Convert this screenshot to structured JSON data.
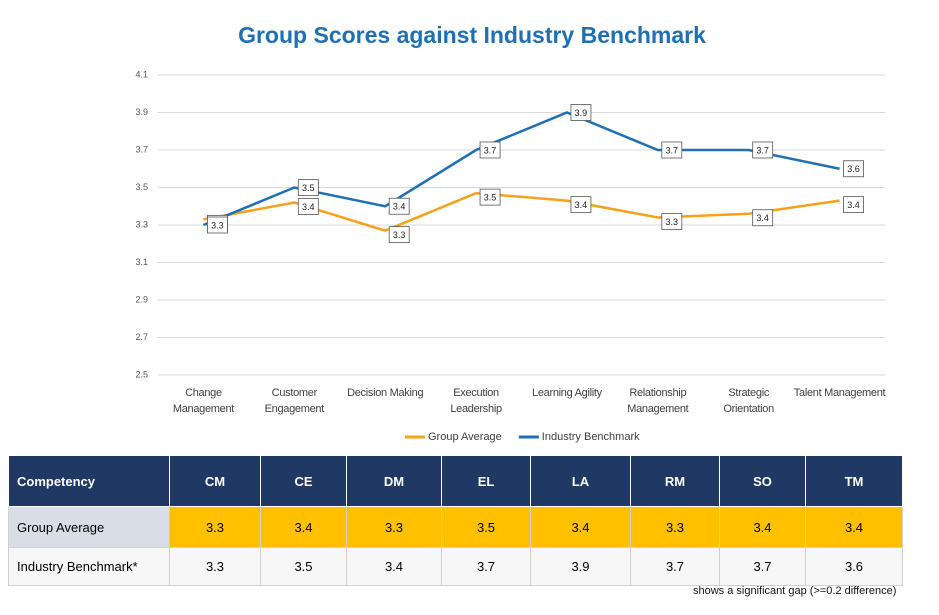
{
  "chart_data": {
    "type": "line",
    "title": "Group Scores against Industry Benchmark",
    "categories": [
      "Change Management",
      "Customer Engagement",
      "Decision Making",
      "Execution Leadership",
      "Learning Agility",
      "Relationship Management",
      "Strategic Orientation",
      "Talent Management"
    ],
    "series": [
      {
        "name": "Group Average",
        "color": "#f7a11a",
        "values": [
          3.33,
          3.42,
          3.27,
          3.47,
          3.43,
          3.34,
          3.36,
          3.43
        ],
        "value_labels": [
          "3.3",
          "3.4",
          "3.3",
          "3.5",
          "3.4",
          "3.3",
          "3.4",
          "3.4"
        ]
      },
      {
        "name": "Industry Benchmark",
        "color": "#1f6fb5",
        "values": [
          3.3,
          3.5,
          3.4,
          3.7,
          3.9,
          3.7,
          3.7,
          3.6
        ]
      }
    ],
    "ylim": [
      2.5,
      4.1
    ],
    "yticks": [
      2.5,
      2.7,
      2.9,
      3.1,
      3.3,
      3.5,
      3.7,
      3.9,
      4.1
    ],
    "grid": true,
    "legend": "bottom"
  },
  "table": {
    "header": [
      "Competency",
      "CM",
      "CE",
      "DM",
      "EL",
      "LA",
      "RM",
      "SO",
      "TM"
    ],
    "rows": [
      [
        "Group Average",
        "3.3",
        "3.4",
        "3.3",
        "3.5",
        "3.4",
        "3.3",
        "3.4",
        "3.4"
      ],
      [
        "Industry Benchmark*",
        "3.3",
        "3.5",
        "3.4",
        "3.7",
        "3.9",
        "3.7",
        "3.7",
        "3.6"
      ]
    ],
    "footnote": "shows a significant gap (>=0.2 difference)"
  }
}
